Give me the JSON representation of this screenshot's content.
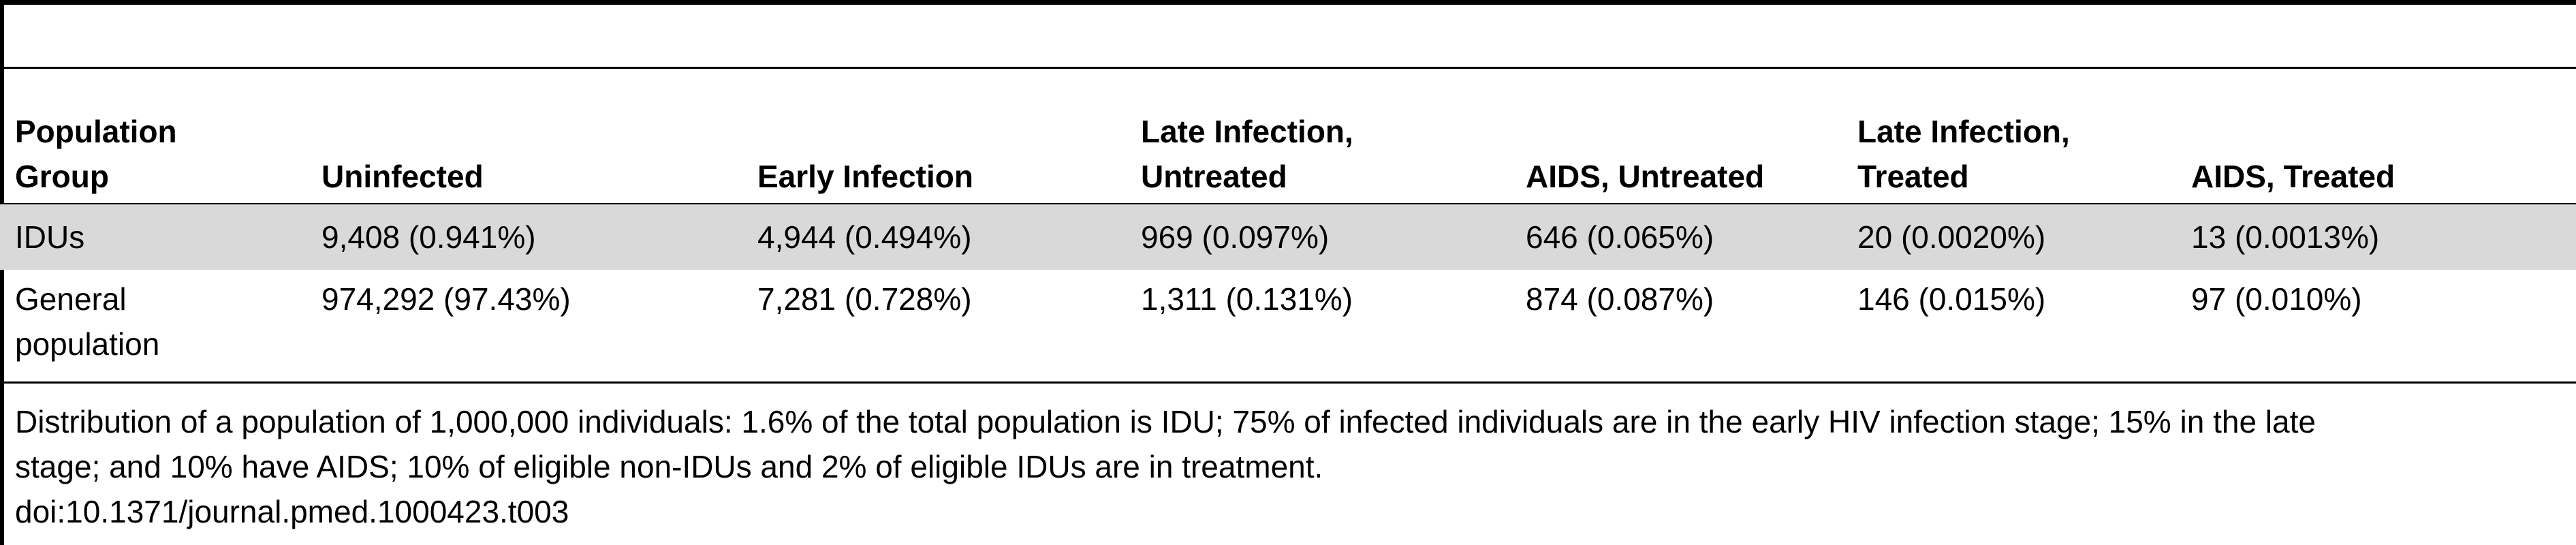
{
  "table": {
    "headers": [
      [
        "Population",
        "Group"
      ],
      [
        "Uninfected"
      ],
      [
        "Early Infection"
      ],
      [
        "Late Infection,",
        "Untreated"
      ],
      [
        "AIDS, Untreated"
      ],
      [
        "Late Infection,",
        "Treated"
      ],
      [
        "AIDS, Treated"
      ]
    ],
    "rows": [
      {
        "group": [
          "IDUs"
        ],
        "cells": [
          "9,408 (0.941%)",
          "4,944 (0.494%)",
          "969 (0.097%)",
          "646 (0.065%)",
          "20 (0.0020%)",
          "13 (0.0013%)"
        ]
      },
      {
        "group": [
          "General",
          "population"
        ],
        "cells": [
          "974,292 (97.43%)",
          "7,281 (0.728%)",
          "1,311 (0.131%)",
          "874 (0.087%)",
          "146 (0.015%)",
          "97 (0.010%)"
        ]
      }
    ],
    "highlight_color": "#d9d9d9"
  },
  "footnote": {
    "lines": [
      "Distribution of a population of 1,000,000 individuals: 1.6% of the total population is IDU; 75% of infected individuals are in the early HIV infection stage; 15% in the late",
      "stage; and 10% have AIDS; 10% of eligible non-IDUs and 2% of eligible IDUs are in treatment."
    ],
    "doi": "doi:10.1371/journal.pmed.1000423.t003"
  }
}
